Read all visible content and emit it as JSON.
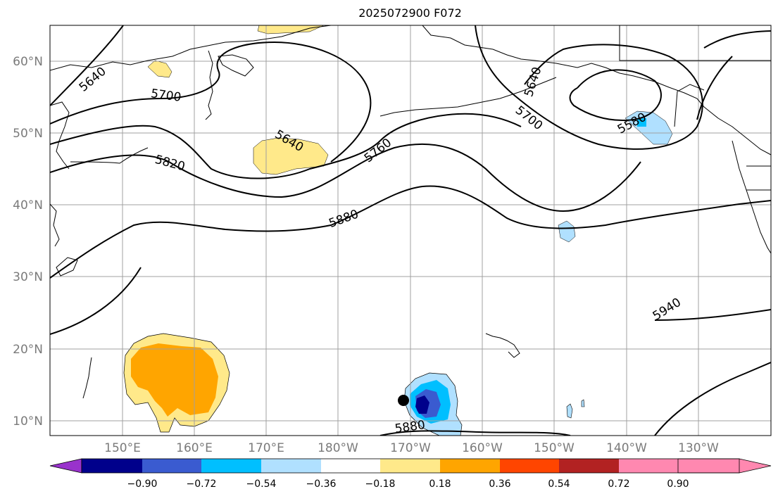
{
  "title": "2025072900 F072",
  "map": {
    "lat_labels": [
      "60°N",
      "50°N",
      "40°N",
      "30°N",
      "20°N",
      "10°N"
    ],
    "lon_labels": [
      "150°E",
      "160°E",
      "170°E",
      "180°W",
      "170°W",
      "160°W",
      "150°W",
      "140°W",
      "130°W"
    ],
    "contour_labels": [
      "5640",
      "5700",
      "5640",
      "5820",
      "5760",
      "5880",
      "5700",
      "5640",
      "5580",
      "5940",
      "5880"
    ],
    "marker": "black-dot"
  },
  "colorbar": {
    "ticks": [
      "−0.90",
      "−0.72",
      "−0.54",
      "−0.36",
      "−0.18",
      "0.18",
      "0.36",
      "0.54",
      "0.72",
      "0.90"
    ],
    "colors": [
      "#9932cc",
      "#00008b",
      "#3a5bd0",
      "#00bfff",
      "#b0e0ff",
      "#ffffff",
      "#ffe98a",
      "#ffa500",
      "#ff4500",
      "#b22222",
      "#ff88b0"
    ]
  }
}
